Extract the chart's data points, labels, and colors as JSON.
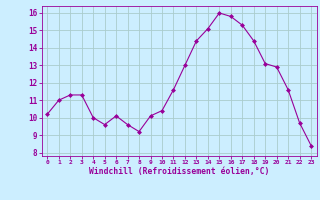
{
  "x": [
    0,
    1,
    2,
    3,
    4,
    5,
    6,
    7,
    8,
    9,
    10,
    11,
    12,
    13,
    14,
    15,
    16,
    17,
    18,
    19,
    20,
    21,
    22,
    23
  ],
  "y": [
    10.2,
    11.0,
    11.3,
    11.3,
    10.0,
    9.6,
    10.1,
    9.6,
    9.2,
    10.1,
    10.4,
    11.6,
    13.0,
    14.4,
    15.1,
    16.0,
    15.8,
    15.3,
    14.4,
    13.1,
    12.9,
    11.6,
    9.7,
    8.4
  ],
  "line_color": "#990099",
  "marker": "D",
  "marker_size": 2,
  "bg_color": "#cceeff",
  "grid_color": "#aacccc",
  "xlabel": "Windchill (Refroidissement éolien,°C)",
  "xlabel_color": "#990099",
  "tick_color": "#990099",
  "ylim": [
    7.8,
    16.4
  ],
  "yticks": [
    8,
    9,
    10,
    11,
    12,
    13,
    14,
    15,
    16
  ],
  "xlim": [
    -0.5,
    23.5
  ],
  "xticks": [
    0,
    1,
    2,
    3,
    4,
    5,
    6,
    7,
    8,
    9,
    10,
    11,
    12,
    13,
    14,
    15,
    16,
    17,
    18,
    19,
    20,
    21,
    22,
    23
  ]
}
